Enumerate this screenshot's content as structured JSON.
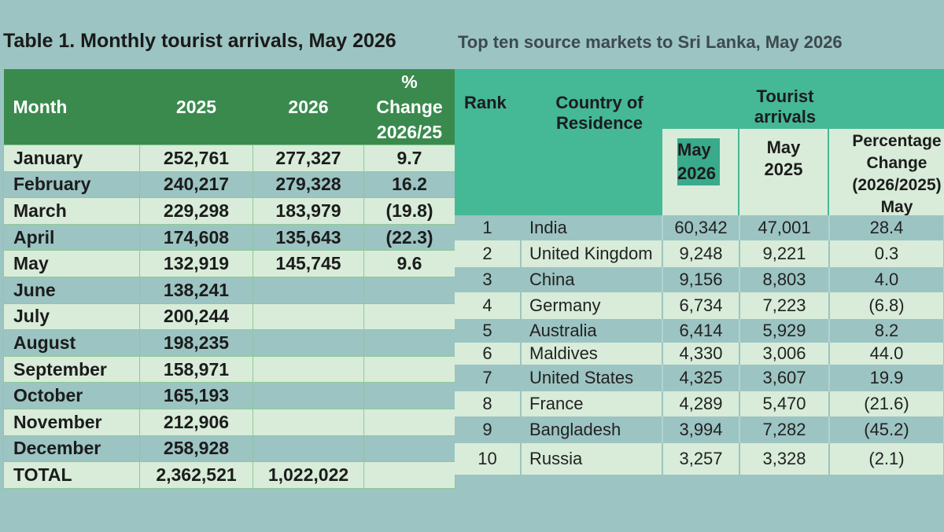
{
  "table1": {
    "title": "Table 1. Monthly tourist arrivals, May 2026",
    "headers": {
      "month": "Month",
      "y2025": "2025",
      "y2026": "2026",
      "pct_line1": "%",
      "pct_line2": "Change",
      "pct_line3": "2026/25"
    },
    "rows": [
      {
        "month": "January",
        "y2025": "252,761",
        "y2026": "277,327",
        "pct": "9.7"
      },
      {
        "month": "February",
        "y2025": "240,217",
        "y2026": "279,328",
        "pct": "16.2"
      },
      {
        "month": "March",
        "y2025": "229,298",
        "y2026": "183,979",
        "pct": "(19.8)"
      },
      {
        "month": "April",
        "y2025": "174,608",
        "y2026": "135,643",
        "pct": "(22.3)"
      },
      {
        "month": "May",
        "y2025": "132,919",
        "y2026": "145,745",
        "pct": "9.6"
      },
      {
        "month": "June",
        "y2025": "138,241",
        "y2026": "",
        "pct": ""
      },
      {
        "month": "July",
        "y2025": "200,244",
        "y2026": "",
        "pct": ""
      },
      {
        "month": "August",
        "y2025": "198,235",
        "y2026": "",
        "pct": ""
      },
      {
        "month": "September",
        "y2025": "158,971",
        "y2026": "",
        "pct": ""
      },
      {
        "month": "October",
        "y2025": "165,193",
        "y2026": "",
        "pct": ""
      },
      {
        "month": "November",
        "y2025": "212,906",
        "y2026": "",
        "pct": ""
      },
      {
        "month": "December",
        "y2025": "258,928",
        "y2026": "",
        "pct": ""
      },
      {
        "month": "TOTAL",
        "y2025": "2,362,521",
        "y2026": "1,022,022",
        "pct": ""
      }
    ]
  },
  "table2": {
    "title": "Top ten source markets to Sri Lanka, May 2026",
    "headers": {
      "rank": "Rank",
      "country_line1": "Country of",
      "country_line2": "Residence",
      "arrivals_line1": "Tourist",
      "arrivals_line2": "arrivals",
      "may26_line1": "May",
      "may26_line2": "2026",
      "may25_line1": "May",
      "may25_line2": "2025",
      "pct_line1": "Percentage",
      "pct_line2": "Change",
      "pct_line3": "(2026/2025)",
      "pct_line4": "May"
    },
    "rows": [
      {
        "rank": "1",
        "country": "India",
        "may2026": "60,342",
        "may2025": "47,001",
        "pct": "28.4"
      },
      {
        "rank": "2",
        "country": "United Kingdom",
        "may2026": "9,248",
        "may2025": "9,221",
        "pct": "0.3"
      },
      {
        "rank": "3",
        "country": "China",
        "may2026": "9,156",
        "may2025": "8,803",
        "pct": "4.0"
      },
      {
        "rank": "4",
        "country": "Germany",
        "may2026": "6,734",
        "may2025": "7,223",
        "pct": "(6.8)"
      },
      {
        "rank": "5",
        "country": "Australia",
        "may2026": "6,414",
        "may2025": "5,929",
        "pct": "8.2"
      },
      {
        "rank": "6",
        "country": "Maldives",
        "may2026": "4,330",
        "may2025": "3,006",
        "pct": "44.0"
      },
      {
        "rank": "7",
        "country": "United States",
        "may2026": "4,325",
        "may2025": "3,607",
        "pct": "19.9"
      },
      {
        "rank": "8",
        "country": "France",
        "may2026": "4,289",
        "may2025": "5,470",
        "pct": "(21.6)"
      },
      {
        "rank": "9",
        "country": "Bangladesh",
        "may2026": "3,994",
        "may2025": "7,282",
        "pct": "(45.2)"
      },
      {
        "rank": "10",
        "country": "Russia",
        "may2026": "3,257",
        "may2025": "3,328",
        "pct": "(2.1)"
      }
    ]
  }
}
